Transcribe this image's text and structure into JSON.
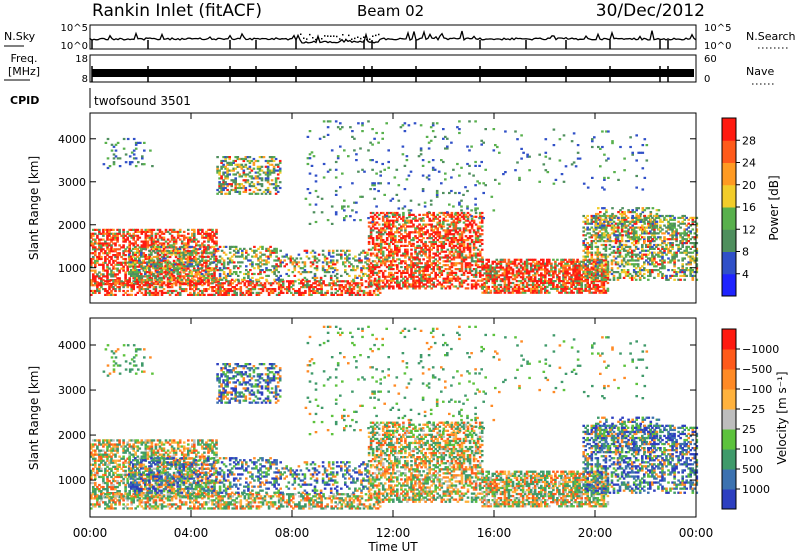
{
  "header": {
    "station": "Rankin Inlet (fitACF)",
    "beam": "Beam 02",
    "date": "30/Dec/2012"
  },
  "noise_panel": {
    "left_label": "N.Sky",
    "right_label": "N.Search",
    "left_ticks": [
      "10^5",
      "10^0"
    ],
    "right_ticks": [
      "10^5",
      "10^0"
    ],
    "right_legend_style": "dotted"
  },
  "freq_panel": {
    "left_label_lines": [
      "Freq.",
      "[MHz]"
    ],
    "right_label": "Nave",
    "left_ticks": [
      "18",
      "8"
    ],
    "right_ticks": [
      "60",
      "0"
    ],
    "right_legend_style": "dotted"
  },
  "cpid_panel": {
    "label": "CPID",
    "program": "twofsound 3501"
  },
  "chart_data": [
    {
      "type": "heatmap",
      "name": "power",
      "ylabel": "Slant Range [km]",
      "xlabel": "",
      "yticks": [
        1000,
        2000,
        3000,
        4000
      ],
      "ylim": [
        180,
        4600
      ],
      "xlim": [
        0,
        24
      ],
      "colorbar": {
        "label": "Power [dB]",
        "ticks": [
          "4",
          "8",
          "12",
          "16",
          "20",
          "24",
          "28"
        ],
        "colors": [
          "#1f24ff",
          "#3050c8",
          "#4f8f5e",
          "#58b04c",
          "#f2cc2a",
          "#ff9a22",
          "#ff5a1a",
          "#ff1a10"
        ]
      }
    },
    {
      "type": "heatmap",
      "name": "velocity",
      "ylabel": "Slant Range [km]",
      "xlabel": "Time UT",
      "yticks": [
        1000,
        2000,
        3000,
        4000
      ],
      "ylim": [
        180,
        4600
      ],
      "xlim": [
        0,
        24
      ],
      "xticks": [
        "00:00",
        "04:00",
        "08:00",
        "12:00",
        "16:00",
        "20:00",
        "00:00"
      ],
      "colorbar": {
        "label": "Velocity [m s⁻¹]",
        "ticks": [
          "1000",
          "500",
          "100",
          "25",
          "−25",
          "−100",
          "−500",
          "−1000"
        ],
        "colors": [
          "#2d3fc0",
          "#3c72b0",
          "#3f9a6a",
          "#5cc23c",
          "#bdbdbd",
          "#ffb23d",
          "#ff8a25",
          "#ff5a1a",
          "#ff1a10"
        ]
      }
    }
  ]
}
